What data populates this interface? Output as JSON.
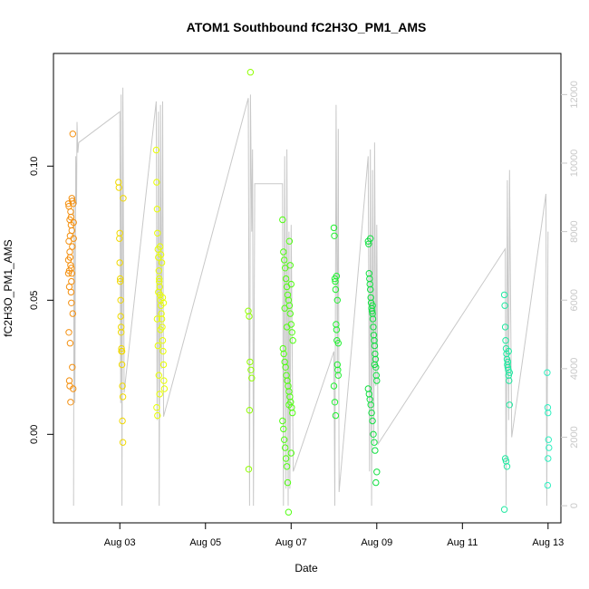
{
  "chart_data": {
    "type": "scatter",
    "title": "ATOM1 Southbound fC2H3O_PM1_AMS",
    "xlabel": "Date",
    "ylabel": "fC2H3O_PM1_AMS",
    "x_ticks": [
      {
        "day": 3,
        "label": "Aug 03"
      },
      {
        "day": 5,
        "label": "Aug 05"
      },
      {
        "day": 7,
        "label": "Aug 07"
      },
      {
        "day": 9,
        "label": "Aug 09"
      },
      {
        "day": 11,
        "label": "Aug 11"
      },
      {
        "day": 13,
        "label": "Aug 13"
      }
    ],
    "xlim_day": [
      1.45,
      13.3
    ],
    "ylim": [
      -0.033,
      0.142
    ],
    "y_ticks": [
      0.0,
      0.05,
      0.1
    ],
    "y_tick_labels": [
      "0.00",
      "0.05",
      "0.10"
    ],
    "y2_ticks": [
      0,
      2000,
      4000,
      6000,
      8000,
      10000,
      12000
    ],
    "y2_tick_labels": [
      "0",
      "2000",
      "4000",
      "6000",
      "8000",
      "10000",
      "12000"
    ],
    "y2lim": [
      -500,
      13200
    ],
    "line_color": "#c8c8c8",
    "secondary_series": {
      "name": "",
      "description_free": true,
      "points": [
        [
          1.92,
          0
        ],
        [
          1.93,
          9000
        ],
        [
          1.95,
          3000
        ],
        [
          1.97,
          10200
        ],
        [
          1.99,
          8800
        ],
        [
          2.0,
          11200
        ],
        [
          2.02,
          10300
        ],
        [
          2.04,
          10600
        ],
        [
          3.0,
          11500
        ],
        [
          3.02,
          3000
        ],
        [
          3.03,
          12000
        ],
        [
          3.05,
          0
        ],
        [
          3.07,
          12200
        ],
        [
          3.1,
          3300
        ],
        [
          3.85,
          11800
        ],
        [
          3.87,
          2500
        ],
        [
          3.88,
          4000
        ],
        [
          3.9,
          11500
        ],
        [
          3.92,
          0
        ],
        [
          3.95,
          11700
        ],
        [
          3.97,
          4000
        ],
        [
          4.0,
          11800
        ],
        [
          4.02,
          2600
        ],
        [
          6.0,
          11900
        ],
        [
          6.03,
          0
        ],
        [
          6.05,
          12000
        ],
        [
          6.08,
          8000
        ],
        [
          6.1,
          10400
        ],
        [
          6.12,
          0
        ],
        [
          6.15,
          9400
        ],
        [
          6.8,
          9400
        ],
        [
          6.82,
          0
        ],
        [
          6.85,
          10200
        ],
        [
          6.88,
          500
        ],
        [
          6.9,
          10400
        ],
        [
          6.93,
          0
        ],
        [
          6.95,
          8000
        ],
        [
          6.97,
          500
        ],
        [
          7.0,
          8200
        ],
        [
          7.05,
          1000
        ],
        [
          8.0,
          4500
        ],
        [
          8.02,
          0
        ],
        [
          8.05,
          11700
        ],
        [
          8.08,
          3800
        ],
        [
          8.1,
          11000
        ],
        [
          8.12,
          400
        ],
        [
          8.8,
          10200
        ],
        [
          8.83,
          1000
        ],
        [
          8.85,
          10400
        ],
        [
          8.88,
          0
        ],
        [
          8.9,
          9800
        ],
        [
          8.93,
          1800
        ],
        [
          8.95,
          10600
        ],
        [
          8.98,
          3500
        ],
        [
          9.0,
          8200
        ],
        [
          9.03,
          1800
        ],
        [
          12.0,
          7500
        ],
        [
          12.02,
          0
        ],
        [
          12.05,
          9500
        ],
        [
          12.08,
          2500
        ],
        [
          12.1,
          9800
        ],
        [
          12.15,
          2000
        ],
        [
          12.95,
          9100
        ],
        [
          12.97,
          0
        ],
        [
          13.0,
          8000
        ]
      ]
    },
    "series": [
      {
        "color": "#f49010",
        "x": [
          1.8,
          1.8,
          1.81,
          1.81,
          1.82,
          1.82,
          1.83,
          1.83,
          1.84,
          1.84,
          1.85,
          1.85,
          1.86,
          1.86,
          1.87,
          1.87,
          1.88,
          1.88,
          1.89,
          1.89,
          1.9,
          1.9,
          1.91,
          1.91,
          1.92,
          1.92,
          1.8,
          1.81,
          1.82,
          1.83,
          1.84,
          1.85,
          1.86,
          1.87,
          1.88,
          1.89
        ],
        "y": [
          0.086,
          0.06,
          0.072,
          0.038,
          0.055,
          0.02,
          0.08,
          0.018,
          0.066,
          0.034,
          0.083,
          0.012,
          0.078,
          0.053,
          0.062,
          0.049,
          0.088,
          0.076,
          0.025,
          0.07,
          0.045,
          0.112,
          0.086,
          0.017,
          0.073,
          0.079,
          0.065,
          0.085,
          0.061,
          0.068,
          0.074,
          0.063,
          0.081,
          0.057,
          0.06,
          0.087
        ]
      },
      {
        "color": "#f0d800",
        "x": [
          2.97,
          2.98,
          2.99,
          3.0,
          3.01,
          3.02,
          3.03,
          3.04,
          3.05,
          3.06,
          3.07,
          3.0,
          3.01,
          3.02,
          3.03,
          3.04,
          3.05,
          3.06,
          3.07,
          3.08
        ],
        "y": [
          0.094,
          0.092,
          0.073,
          0.064,
          0.057,
          0.05,
          0.04,
          0.031,
          0.026,
          0.018,
          0.014,
          0.075,
          0.058,
          0.044,
          0.038,
          0.032,
          0.031,
          0.005,
          -0.003,
          0.088
        ]
      },
      {
        "color": "#e8ff00",
        "x": [
          3.85,
          3.86,
          3.87,
          3.88,
          3.89,
          3.9,
          3.91,
          3.92,
          3.93,
          3.94,
          3.95,
          3.96,
          3.97,
          3.98,
          3.99,
          4.0,
          4.01,
          4.02,
          4.03,
          4.04,
          3.86,
          3.88,
          3.9,
          3.92,
          3.94,
          3.96,
          3.98,
          4.0,
          4.02,
          3.87,
          3.89,
          3.91,
          3.93,
          3.95
        ],
        "y": [
          0.106,
          0.094,
          0.084,
          0.075,
          0.069,
          0.066,
          0.061,
          0.058,
          0.055,
          0.052,
          0.05,
          0.048,
          0.045,
          0.043,
          0.04,
          0.035,
          0.031,
          0.026,
          0.02,
          0.017,
          0.01,
          0.007,
          0.053,
          0.057,
          0.07,
          0.067,
          0.064,
          0.051,
          0.049,
          0.043,
          0.033,
          0.022,
          0.015,
          0.039
        ]
      },
      {
        "color": "#90ff00",
        "x": [
          6.05,
          6.0,
          6.02,
          6.04,
          6.06,
          6.08,
          6.03,
          6.01
        ],
        "y": [
          0.135,
          0.046,
          0.044,
          0.027,
          0.024,
          0.021,
          0.009,
          -0.013
        ]
      },
      {
        "color": "#50ff10",
        "x": [
          6.8,
          6.82,
          6.84,
          6.86,
          6.88,
          6.9,
          6.92,
          6.94,
          6.96,
          6.98,
          7.0,
          7.02,
          7.04,
          6.81,
          6.83,
          6.85,
          6.87,
          6.89,
          6.91,
          6.93,
          6.95,
          6.97,
          6.99,
          7.01,
          7.03,
          6.8,
          6.82,
          6.84,
          6.86,
          6.88,
          6.9,
          6.92,
          6.94,
          6.96,
          6.98,
          7.0,
          6.85,
          6.9,
          6.95,
          7.0
        ],
        "y": [
          0.08,
          0.068,
          0.065,
          0.062,
          0.058,
          0.055,
          0.052,
          0.05,
          0.048,
          0.045,
          0.041,
          0.038,
          0.035,
          0.032,
          0.03,
          0.027,
          0.025,
          0.022,
          0.02,
          0.018,
          0.016,
          0.014,
          0.012,
          0.01,
          0.008,
          0.005,
          0.002,
          -0.002,
          -0.005,
          -0.009,
          -0.012,
          -0.018,
          -0.029,
          0.072,
          0.063,
          0.056,
          0.047,
          0.04,
          0.011,
          -0.007
        ]
      },
      {
        "color": "#20f030",
        "x": [
          8.0,
          8.01,
          8.02,
          8.03,
          8.04,
          8.05,
          8.06,
          8.07,
          8.08,
          8.09,
          8.1,
          8.0,
          8.02,
          8.04,
          8.06,
          8.08,
          8.1
        ],
        "y": [
          0.077,
          0.074,
          0.058,
          0.057,
          0.054,
          0.041,
          0.039,
          0.035,
          0.026,
          0.024,
          0.022,
          0.018,
          0.012,
          0.007,
          0.059,
          0.05,
          0.034
        ]
      },
      {
        "color": "#10e040",
        "x": [
          8.8,
          8.81,
          8.82,
          8.83,
          8.84,
          8.85,
          8.86,
          8.87,
          8.88,
          8.89,
          8.9,
          8.91,
          8.92,
          8.93,
          8.94,
          8.95,
          8.96,
          8.97,
          8.98,
          8.99,
          9.0,
          8.8,
          8.82,
          8.84,
          8.86,
          8.88,
          8.9,
          8.92,
          8.94,
          8.96,
          8.98,
          9.0,
          8.85,
          8.9,
          8.95
        ],
        "y": [
          0.072,
          0.071,
          0.06,
          0.058,
          0.056,
          0.054,
          0.051,
          0.049,
          0.047,
          0.046,
          0.045,
          0.043,
          0.04,
          0.037,
          0.035,
          0.033,
          0.03,
          0.028,
          0.025,
          0.022,
          0.02,
          0.017,
          0.015,
          0.013,
          0.011,
          0.008,
          0.005,
          0.0,
          -0.003,
          -0.006,
          -0.018,
          -0.014,
          0.073,
          0.048,
          0.026
        ]
      },
      {
        "color": "#20e8a0",
        "x": [
          11.98,
          11.99,
          12.0,
          12.01,
          12.02,
          12.03,
          12.04,
          12.05,
          12.06,
          12.07,
          12.08,
          12.09,
          12.1,
          12.0,
          12.02,
          12.04,
          12.06,
          12.08,
          12.1,
          11.98
        ],
        "y": [
          0.052,
          0.048,
          0.04,
          0.035,
          0.032,
          0.03,
          0.028,
          0.026,
          0.025,
          0.024,
          0.022,
          0.02,
          0.011,
          -0.009,
          -0.01,
          -0.012,
          0.027,
          0.031,
          0.023,
          -0.028
        ]
      },
      {
        "color": "#30f0c0",
        "x": [
          12.98,
          12.99,
          13.0,
          13.01,
          13.02,
          13.0,
          12.99
        ],
        "y": [
          0.023,
          0.01,
          0.008,
          -0.002,
          -0.005,
          -0.009,
          -0.019
        ]
      }
    ]
  }
}
